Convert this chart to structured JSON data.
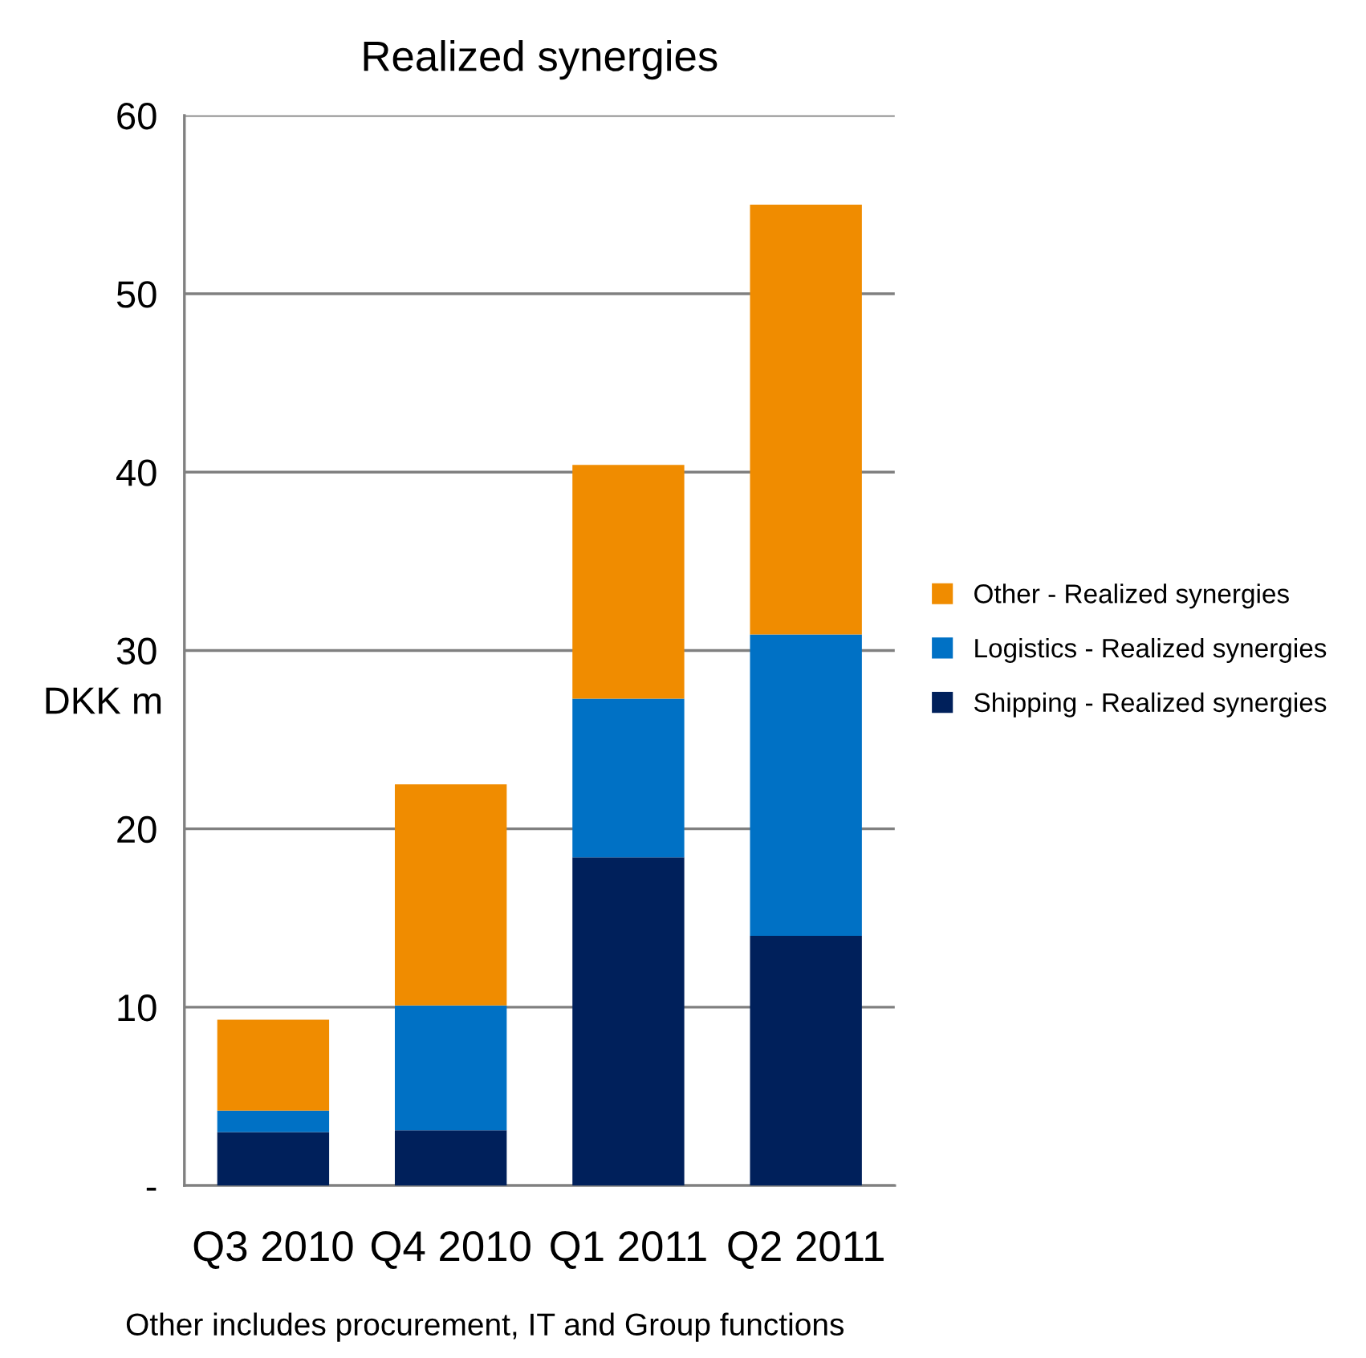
{
  "chart_data": {
    "type": "bar",
    "title": "Realized synergies",
    "ylabel": "DKK m",
    "stacked": true,
    "categories": [
      "Q3 2010",
      "Q4 2010",
      "Q1 2011",
      "Q2 2011"
    ],
    "series": [
      {
        "name": "Shipping - Realized synergies",
        "color": "#00205b",
        "values": [
          3.0,
          3.1,
          18.4,
          14.0
        ]
      },
      {
        "name": "Logistics - Realized synergies",
        "color": "#0071c5",
        "values": [
          1.2,
          7.0,
          8.9,
          16.9
        ]
      },
      {
        "name": "Other - Realized synergies",
        "color": "#f08c00",
        "values": [
          5.1,
          12.4,
          13.1,
          24.1
        ]
      }
    ],
    "ylim": [
      0,
      60
    ],
    "yticks": [
      {
        "value": 0,
        "label": "-"
      },
      10,
      20,
      30,
      40,
      50,
      60
    ],
    "grid": "y",
    "legend": "right",
    "annotations": [
      "Other includes procurement, IT and Group functions"
    ]
  }
}
